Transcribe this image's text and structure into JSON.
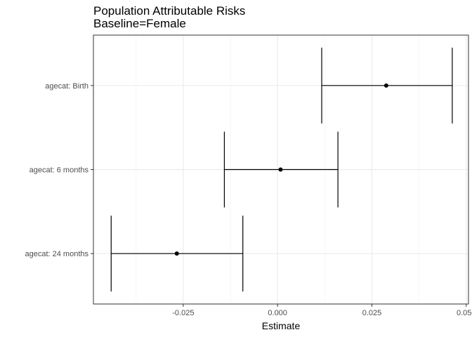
{
  "chart_data": {
    "type": "forest",
    "title": "Population Attributable Risks",
    "subtitle": "Baseline=Female",
    "xlabel": "Estimate",
    "ylabel": "",
    "xlim": [
      -0.0488,
      0.0506
    ],
    "x_ticks": [
      -0.025,
      0.0,
      0.025,
      0.05
    ],
    "x_tick_labels": [
      "-0.025",
      "0.000",
      "0.025",
      "0.050"
    ],
    "x_minor_ticks": [
      -0.0375,
      -0.0125,
      0.0125,
      0.0375
    ],
    "grid": true,
    "categories": [
      "agecat: Birth",
      "agecat: 6 months",
      "agecat: 24 months"
    ],
    "estimates": [
      0.0288,
      0.0008,
      -0.0267
    ],
    "lower": [
      0.0117,
      -0.0141,
      -0.0441
    ],
    "upper": [
      0.0463,
      0.016,
      -0.0092
    ],
    "colors": {
      "panel_border": "#333333",
      "grid_major": "#ebebeb",
      "grid_minor": "#f5f5f5",
      "errorbar": "#000000",
      "point": "#000000",
      "tick": "#333333"
    }
  }
}
